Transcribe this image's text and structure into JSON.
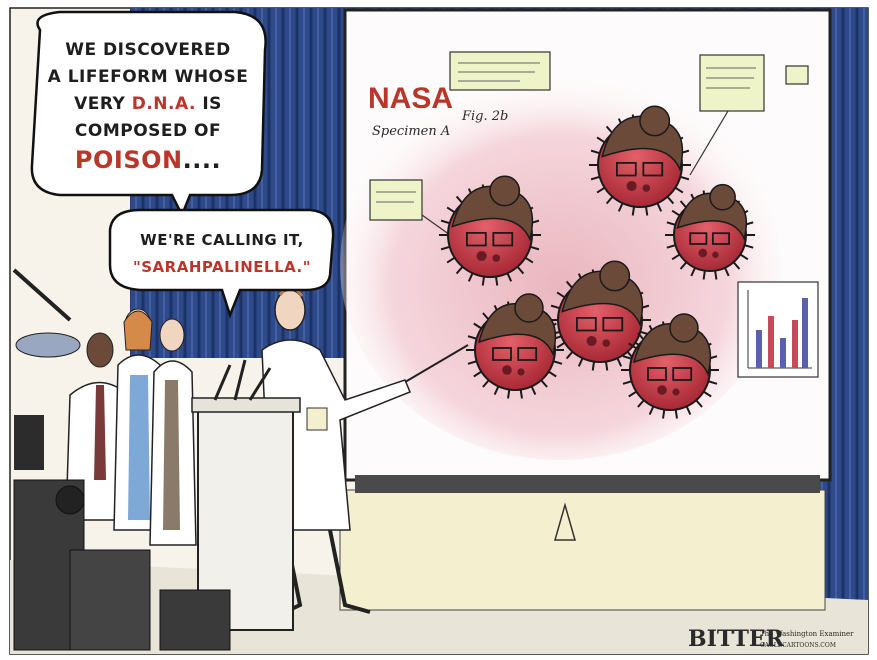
{
  "speech_bubble_1": {
    "line1": "WE DISCOVERED",
    "line2": "A LIFEFORM WHOSE",
    "line3_pre": "VERY ",
    "line3_red": "D.N.A.",
    "line3_post": " IS",
    "line4": "COMPOSED OF",
    "line5_red": "POISON",
    "line5_post": "...."
  },
  "speech_bubble_2": {
    "line1": "WE'RE CALLING IT,",
    "line2": "\"SARAHPALINELLA.\""
  },
  "screen": {
    "title": "NASA",
    "specimen_label": "Specimen A",
    "figure_label": "Fig. 2b"
  },
  "signature": {
    "artist": "BITTER",
    "publication": "The Washington Examiner",
    "site": "CAGLECARTOONS.COM"
  },
  "colors": {
    "microbe_red": "#c8404a",
    "hair_brown": "#6b4a3a",
    "curtain_blue": "#2e4a8a",
    "screen_pink": "#f3d3d8",
    "text_red": "#b8372a"
  }
}
